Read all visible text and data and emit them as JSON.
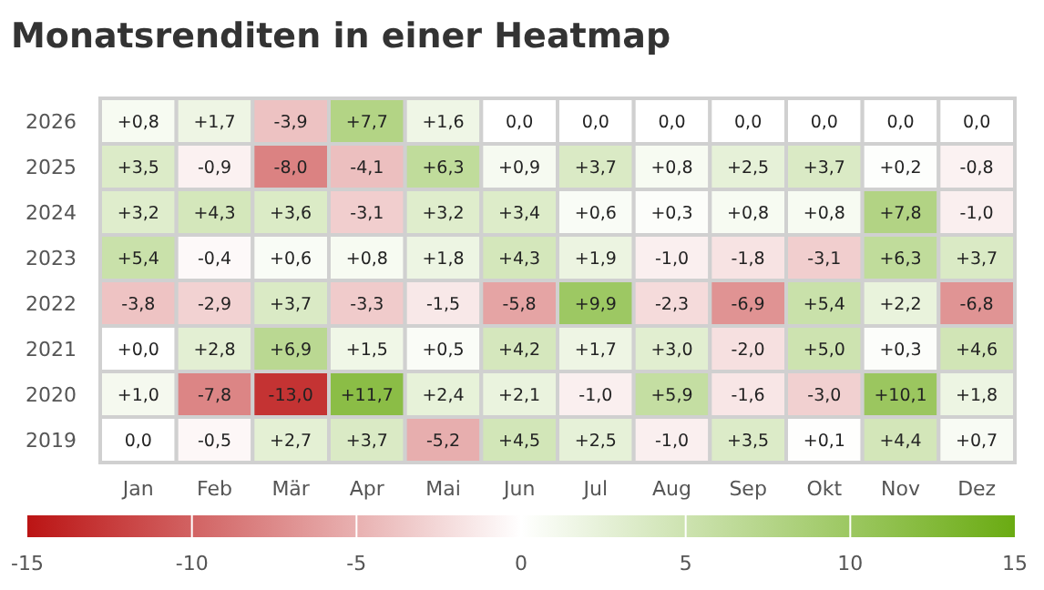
{
  "chart_data": {
    "type": "heatmap",
    "title": "Monatsrenditen in einer Heatmap",
    "categories": [
      "Jan",
      "Feb",
      "Mär",
      "Apr",
      "Mai",
      "Jun",
      "Jul",
      "Aug",
      "Sep",
      "Okt",
      "Nov",
      "Dez"
    ],
    "y_categories": [
      "2026",
      "2025",
      "2024",
      "2023",
      "2022",
      "2021",
      "2020",
      "2019"
    ],
    "cells": [
      [
        0.8,
        1.7,
        -3.9,
        7.7,
        1.6,
        0.0,
        0.0,
        0.0,
        0.0,
        0.0,
        0.0,
        0.0
      ],
      [
        3.5,
        -0.9,
        -8.0,
        -4.1,
        6.3,
        0.9,
        3.7,
        0.8,
        2.5,
        3.7,
        0.2,
        -0.8
      ],
      [
        3.2,
        4.3,
        3.6,
        -3.1,
        3.2,
        3.4,
        0.6,
        0.3,
        0.8,
        0.8,
        7.8,
        -1.0
      ],
      [
        5.4,
        -0.4,
        0.6,
        0.8,
        1.8,
        4.3,
        1.9,
        -1.0,
        -1.8,
        -3.1,
        6.3,
        3.7
      ],
      [
        -3.8,
        -2.9,
        3.7,
        -3.3,
        -1.5,
        -5.8,
        9.9,
        -2.3,
        -6.9,
        5.4,
        2.2,
        -6.8
      ],
      [
        0.0,
        2.8,
        6.9,
        1.5,
        0.5,
        4.2,
        1.7,
        3.0,
        -2.0,
        5.0,
        0.3,
        4.6
      ],
      [
        1.0,
        -7.8,
        -13.0,
        11.7,
        2.4,
        2.1,
        -1.0,
        5.9,
        -1.6,
        -3.0,
        10.1,
        1.8
      ],
      [
        0.0,
        -0.5,
        2.7,
        3.7,
        -5.2,
        4.5,
        2.5,
        -1.0,
        3.5,
        0.1,
        4.4,
        0.7
      ]
    ],
    "cell_labels": [
      [
        "+0,8",
        "+1,7",
        "-3,9",
        "+7,7",
        "+1,6",
        "0,0",
        "0,0",
        "0,0",
        "0,0",
        "0,0",
        "0,0",
        "0,0"
      ],
      [
        "+3,5",
        "-0,9",
        "-8,0",
        "-4,1",
        "+6,3",
        "+0,9",
        "+3,7",
        "+0,8",
        "+2,5",
        "+3,7",
        "+0,2",
        "-0,8"
      ],
      [
        "+3,2",
        "+4,3",
        "+3,6",
        "-3,1",
        "+3,2",
        "+3,4",
        "+0,6",
        "+0,3",
        "+0,8",
        "+0,8",
        "+7,8",
        "-1,0"
      ],
      [
        "+5,4",
        "-0,4",
        "+0,6",
        "+0,8",
        "+1,8",
        "+4,3",
        "+1,9",
        "-1,0",
        "-1,8",
        "-3,1",
        "+6,3",
        "+3,7"
      ],
      [
        "-3,8",
        "-2,9",
        "+3,7",
        "-3,3",
        "-1,5",
        "-5,8",
        "+9,9",
        "-2,3",
        "-6,9",
        "+5,4",
        "+2,2",
        "-6,8"
      ],
      [
        "+0,0",
        "+2,8",
        "+6,9",
        "+1,5",
        "+0,5",
        "+4,2",
        "+1,7",
        "+3,0",
        "-2,0",
        "+5,0",
        "+0,3",
        "+4,6"
      ],
      [
        "+1,0",
        "-7,8",
        "-13,0",
        "+11,7",
        "+2,4",
        "+2,1",
        "-1,0",
        "+5,9",
        "-1,6",
        "-3,0",
        "+10,1",
        "+1,8"
      ],
      [
        "0,0",
        "-0,5",
        "+2,7",
        "+3,7",
        "-5,2",
        "+4,5",
        "+2,5",
        "-1,0",
        "+3,5",
        "+0,1",
        "+4,4",
        "+0,7"
      ]
    ],
    "clim": [
      -15,
      15
    ],
    "cticks": [
      -15,
      -10,
      -5,
      0,
      5,
      10,
      15
    ]
  }
}
